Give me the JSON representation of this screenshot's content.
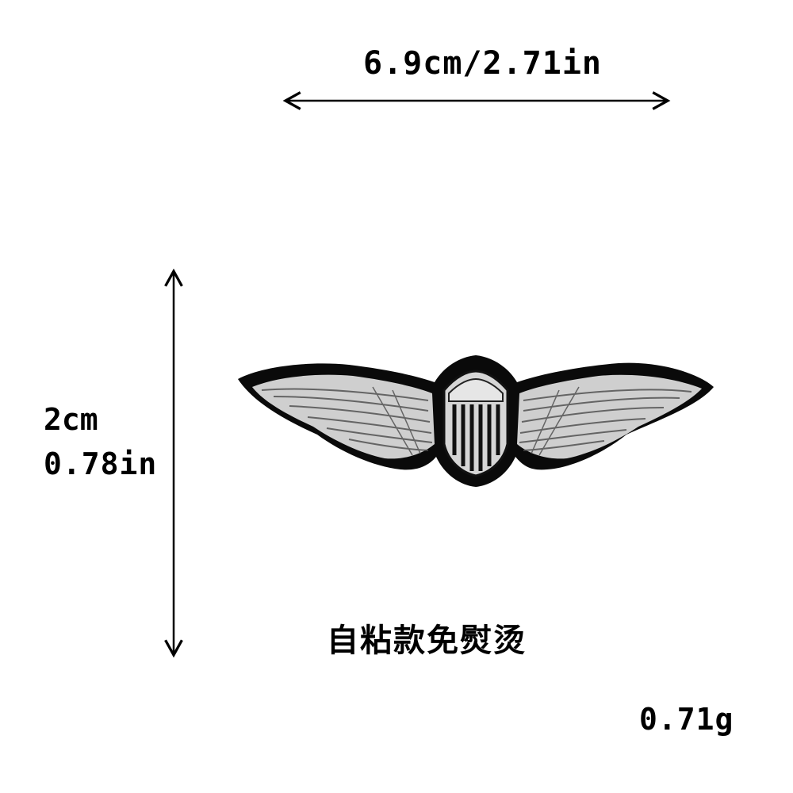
{
  "dimensions": {
    "width_label": "6.9cm/2.71in",
    "height_label_cm": "2cm",
    "height_label_in": "0.78in"
  },
  "note_text": "自粘款免熨烫",
  "weight_label": "0.71g",
  "product": {
    "icon": "winged-shield-patch-icon",
    "colors": {
      "border": "#000000",
      "embroidery": "#c9c9c9",
      "stitch_line": "#3a3a3a"
    }
  }
}
